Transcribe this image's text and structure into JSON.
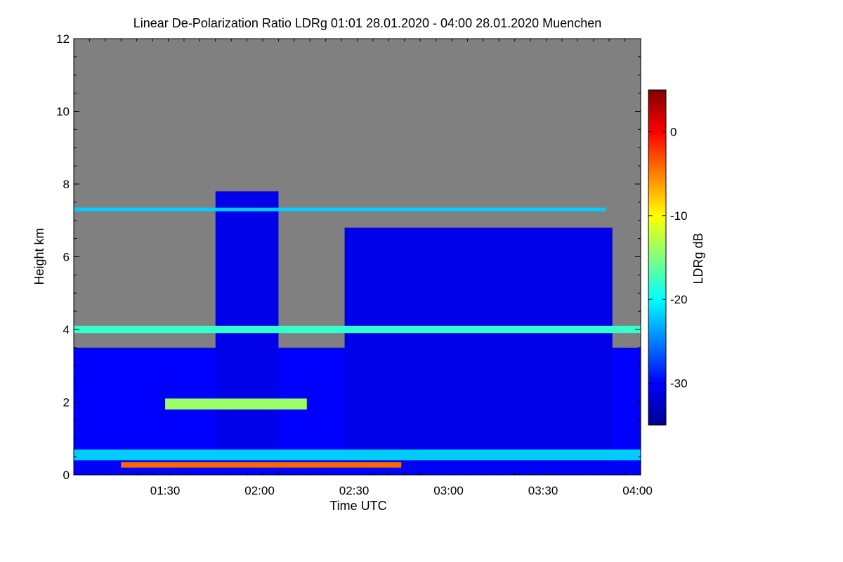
{
  "chart_data": {
    "type": "heatmap",
    "title": "Linear De-Polarization Ratio LDRg   01:01 28.01.2020 - 04:00 28.01.2020 Muenchen",
    "xlabel": "Time UTC",
    "ylabel": "Height km",
    "x_range_minutes": [
      61,
      241
    ],
    "ylim": [
      0,
      12
    ],
    "x_ticks": [
      {
        "label": "01:30",
        "minutes": 90
      },
      {
        "label": "02:00",
        "minutes": 120
      },
      {
        "label": "02:30",
        "minutes": 150
      },
      {
        "label": "03:00",
        "minutes": 180
      },
      {
        "label": "03:30",
        "minutes": 210
      },
      {
        "label": "04:00",
        "minutes": 240
      }
    ],
    "y_ticks": [
      {
        "label": "0",
        "value": 0
      },
      {
        "label": "2",
        "value": 2
      },
      {
        "label": "4",
        "value": 4
      },
      {
        "label": "6",
        "value": 6
      },
      {
        "label": "8",
        "value": 8
      },
      {
        "label": "10",
        "value": 10
      },
      {
        "label": "12",
        "value": 12
      }
    ],
    "background_color": "#808080",
    "colorbar": {
      "label": "LDRg dB",
      "range": [
        -35,
        5
      ],
      "ticks": [
        {
          "label": "0",
          "value": 0
        },
        {
          "label": "-10",
          "value": -10
        },
        {
          "label": "-20",
          "value": -20
        },
        {
          "label": "-30",
          "value": -30
        }
      ],
      "colormap": "jet"
    },
    "regions": [
      {
        "name": "boundary layer",
        "t_start": 61,
        "t_end": 241,
        "h_bottom": 0.0,
        "h_top": 3.5,
        "ldr_db": -30
      },
      {
        "name": "cloud column 01:50-02:05",
        "t_start": 106,
        "t_end": 126,
        "h_bottom": 0.5,
        "h_top": 7.8,
        "ldr_db": -31
      },
      {
        "name": "cloud mass 02:25-03:50",
        "t_start": 147,
        "t_end": 232,
        "h_bottom": 0.3,
        "h_top": 6.8,
        "ldr_db": -31
      },
      {
        "name": "near-surface layer",
        "t_start": 61,
        "t_end": 241,
        "h_bottom": 0.4,
        "h_top": 0.7,
        "ldr_db": -22
      },
      {
        "name": "thin layer near 7.3 km",
        "t_start": 61,
        "t_end": 230,
        "h_bottom": 7.25,
        "h_top": 7.35,
        "ldr_db": -22
      },
      {
        "name": "low layer 01:15-02:45",
        "t_start": 76,
        "t_end": 165,
        "h_bottom": 0.2,
        "h_top": 0.35,
        "ldr_db": -4
      },
      {
        "name": "layer near 2 km",
        "t_start": 90,
        "t_end": 135,
        "h_bottom": 1.8,
        "h_top": 2.1,
        "ldr_db": -14
      },
      {
        "name": "layer near 4 km",
        "t_start": 61,
        "t_end": 241,
        "h_bottom": 3.9,
        "h_top": 4.1,
        "ldr_db": -18
      }
    ]
  }
}
